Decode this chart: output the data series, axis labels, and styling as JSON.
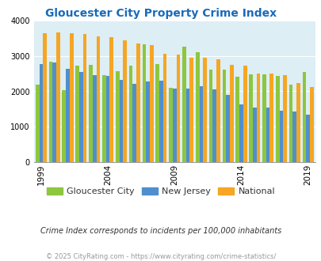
{
  "title": "Gloucester City Property Crime Index",
  "title_color": "#1a6bba",
  "background_color": "#ddeef5",
  "years": [
    1999,
    2000,
    2001,
    2002,
    2003,
    2004,
    2005,
    2006,
    2007,
    2008,
    2009,
    2010,
    2011,
    2012,
    2013,
    2014,
    2015,
    2016,
    2017,
    2018,
    2019,
    2020
  ],
  "gloucester_city": [
    2200,
    2850,
    2030,
    2720,
    2750,
    2450,
    2580,
    2730,
    3330,
    2770,
    2090,
    3270,
    3120,
    2620,
    2620,
    2420,
    2490,
    2490,
    2430,
    2180,
    2550,
    0
  ],
  "new_jersey": [
    2770,
    2830,
    2650,
    2560,
    2450,
    2440,
    2330,
    2210,
    2290,
    2310,
    2080,
    2070,
    2150,
    2060,
    1900,
    1620,
    1550,
    1550,
    1450,
    1430,
    1340,
    0
  ],
  "national": [
    3640,
    3670,
    3640,
    3620,
    3560,
    3530,
    3450,
    3360,
    3320,
    3060,
    3050,
    2960,
    2950,
    2900,
    2750,
    2730,
    2510,
    2510,
    2470,
    2230,
    2120,
    0
  ],
  "gc_color": "#8dc63f",
  "nj_color": "#4f8fce",
  "nat_color": "#f5a623",
  "ylim": [
    0,
    4000
  ],
  "yticks": [
    0,
    1000,
    2000,
    3000,
    4000
  ],
  "xtick_years": [
    1999,
    2004,
    2009,
    2014,
    2019
  ],
  "subtitle": "Crime Index corresponds to incidents per 100,000 inhabitants",
  "footer": "© 2025 CityRating.com - https://www.cityrating.com/crime-statistics/",
  "legend_labels": [
    "Gloucester City",
    "New Jersey",
    "National"
  ]
}
